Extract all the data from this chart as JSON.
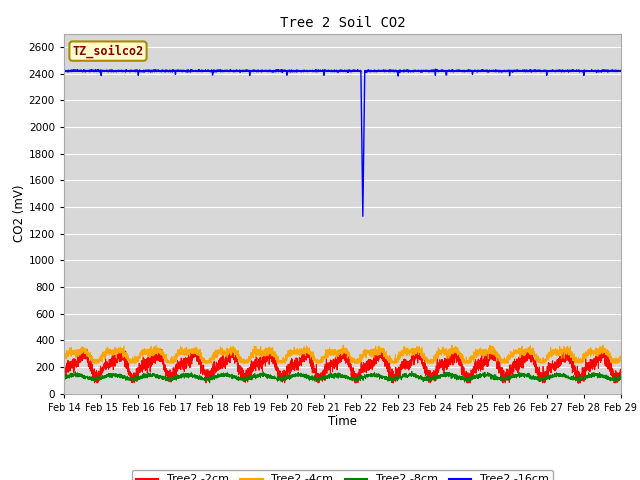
{
  "title": "Tree 2 Soil CO2",
  "xlabel": "Time",
  "ylabel": "CO2 (mV)",
  "ylim": [
    0,
    2700
  ],
  "yticks": [
    0,
    200,
    400,
    600,
    800,
    1000,
    1200,
    1400,
    1600,
    1800,
    2000,
    2200,
    2400,
    2600
  ],
  "date_labels": [
    "Feb 14",
    "Feb 15",
    "Feb 16",
    "Feb 17",
    "Feb 18",
    "Feb 19",
    "Feb 20",
    "Feb 21",
    "Feb 22",
    "Feb 23",
    "Feb 24",
    "Feb 25",
    "Feb 26",
    "Feb 27",
    "Feb 28",
    "Feb 29"
  ],
  "num_days": 15,
  "series_colors": [
    "red",
    "orange",
    "green",
    "blue"
  ],
  "series_labels": [
    "Tree2 -2cm",
    "Tree2 -4cm",
    "Tree2 -8cm",
    "Tree2 -16cm"
  ],
  "bg_color": "#d8d8d8",
  "annotation_label": "TZ_soilco2",
  "annotation_bg": "#ffffcc",
  "annotation_border": "#aa8800",
  "annotation_text_color": "#880000",
  "legend_fontsize": 8,
  "title_fontsize": 10,
  "fig_width": 6.4,
  "fig_height": 4.8,
  "dpi": 100
}
